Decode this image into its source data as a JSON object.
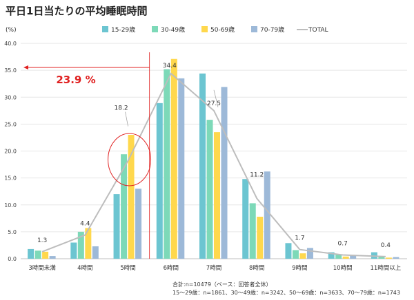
{
  "title": "平日1日当たりの平均睡眠時間",
  "y_unit": "(%)",
  "annotation_label": "23.9 %",
  "footnote": {
    "line1": "合計:n=10479（ベース：回答者全体）",
    "line2": "15～29歳：n=1861、30～49歳：n=3242、50～69歳：n=3633、70～79歳：n=1743"
  },
  "colors": {
    "s15_29": "#6CC5D1",
    "s30_49": "#7DD9B8",
    "s50_69": "#FFD84D",
    "s70_79": "#9DB9D8",
    "total": "#BDBDBD",
    "annotation": "#E02020"
  },
  "chart_data": {
    "type": "bar",
    "categories": [
      "3時間未満",
      "4時間",
      "5時間",
      "6時間",
      "7時間",
      "8時間",
      "9時間",
      "10時間",
      "11時間以上"
    ],
    "series": [
      {
        "name": "15-29歳",
        "values": [
          1.8,
          3.0,
          12.0,
          28.9,
          34.4,
          14.8,
          2.9,
          1.2,
          1.2
        ]
      },
      {
        "name": "30-49歳",
        "values": [
          1.5,
          5.0,
          19.4,
          35.2,
          25.8,
          10.3,
          1.6,
          0.8,
          0.5
        ]
      },
      {
        "name": "50-69歳",
        "values": [
          1.3,
          5.7,
          23.0,
          37.1,
          23.5,
          7.8,
          1.0,
          0.4,
          0.2
        ]
      },
      {
        "name": "70-79歳",
        "values": [
          0.5,
          2.3,
          13.0,
          33.5,
          31.9,
          16.2,
          2.0,
          0.7,
          0.3
        ]
      }
    ],
    "total": {
      "name": "TOTAL",
      "type": "line",
      "values": [
        1.3,
        4.4,
        18.2,
        34.4,
        27.5,
        11.2,
        1.7,
        0.7,
        0.4
      ]
    },
    "total_labels": [
      "1.3",
      "4.4",
      "18.2",
      "34.4",
      "27.5",
      "11.2",
      "1.7",
      "0.7",
      "0.4"
    ],
    "ylim": [
      0,
      40
    ],
    "yticks": [
      "0.0",
      "5.0",
      "10.0",
      "15.0",
      "20.0",
      "25.0",
      "30.0",
      "35.0",
      "40.0"
    ],
    "legend_position": "top",
    "grid": true
  }
}
